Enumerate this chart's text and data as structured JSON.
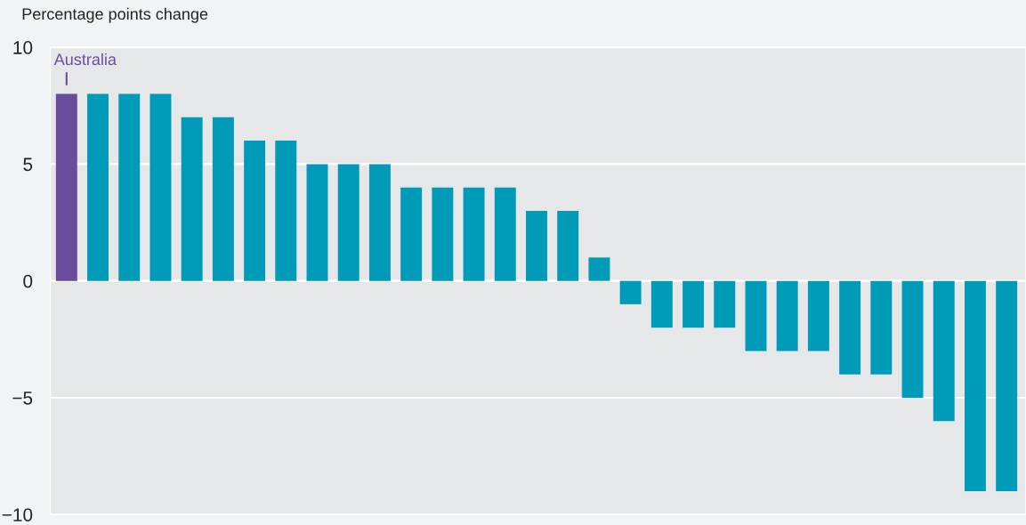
{
  "chart_data": {
    "type": "bar",
    "ylabel": "Percentage points change",
    "annotations": [
      {
        "text": "Australia",
        "y": 8
      }
    ],
    "categories": [
      null,
      null,
      null,
      null,
      null,
      null,
      null,
      null,
      null,
      null,
      null,
      null,
      null,
      null,
      null,
      null,
      null,
      null,
      null,
      null,
      null,
      null,
      null,
      null,
      null,
      null,
      null,
      null,
      null,
      null,
      null
    ],
    "values": [
      8,
      8,
      8,
      8,
      7,
      7,
      6,
      6,
      5,
      5,
      5,
      4,
      4,
      4,
      4,
      3,
      3,
      1,
      -1,
      -2,
      -2,
      -2,
      -3,
      -3,
      -3,
      -4,
      -4,
      -5,
      -6,
      -9,
      -9
    ],
    "colors": [
      "#6a4c9c",
      "#009bb9",
      "#009bb9",
      "#009bb9",
      "#009bb9",
      "#009bb9",
      "#009bb9",
      "#009bb9",
      "#009bb9",
      "#009bb9",
      "#009bb9",
      "#009bb9",
      "#009bb9",
      "#009bb9",
      "#009bb9",
      "#009bb9",
      "#009bb9",
      "#009bb9",
      "#009bb9",
      "#009bb9",
      "#009bb9",
      "#009bb9",
      "#009bb9",
      "#009bb9",
      "#009bb9",
      "#009bb9",
      "#009bb9",
      "#009bb9",
      "#009bb9",
      "#009bb9",
      "#009bb9"
    ],
    "ylim": [
      -10,
      10
    ],
    "yticks": [
      {
        "value": -10,
        "label": "−10"
      },
      {
        "value": -5,
        "label": "−5"
      },
      0,
      5,
      10
    ],
    "grid": "y"
  }
}
